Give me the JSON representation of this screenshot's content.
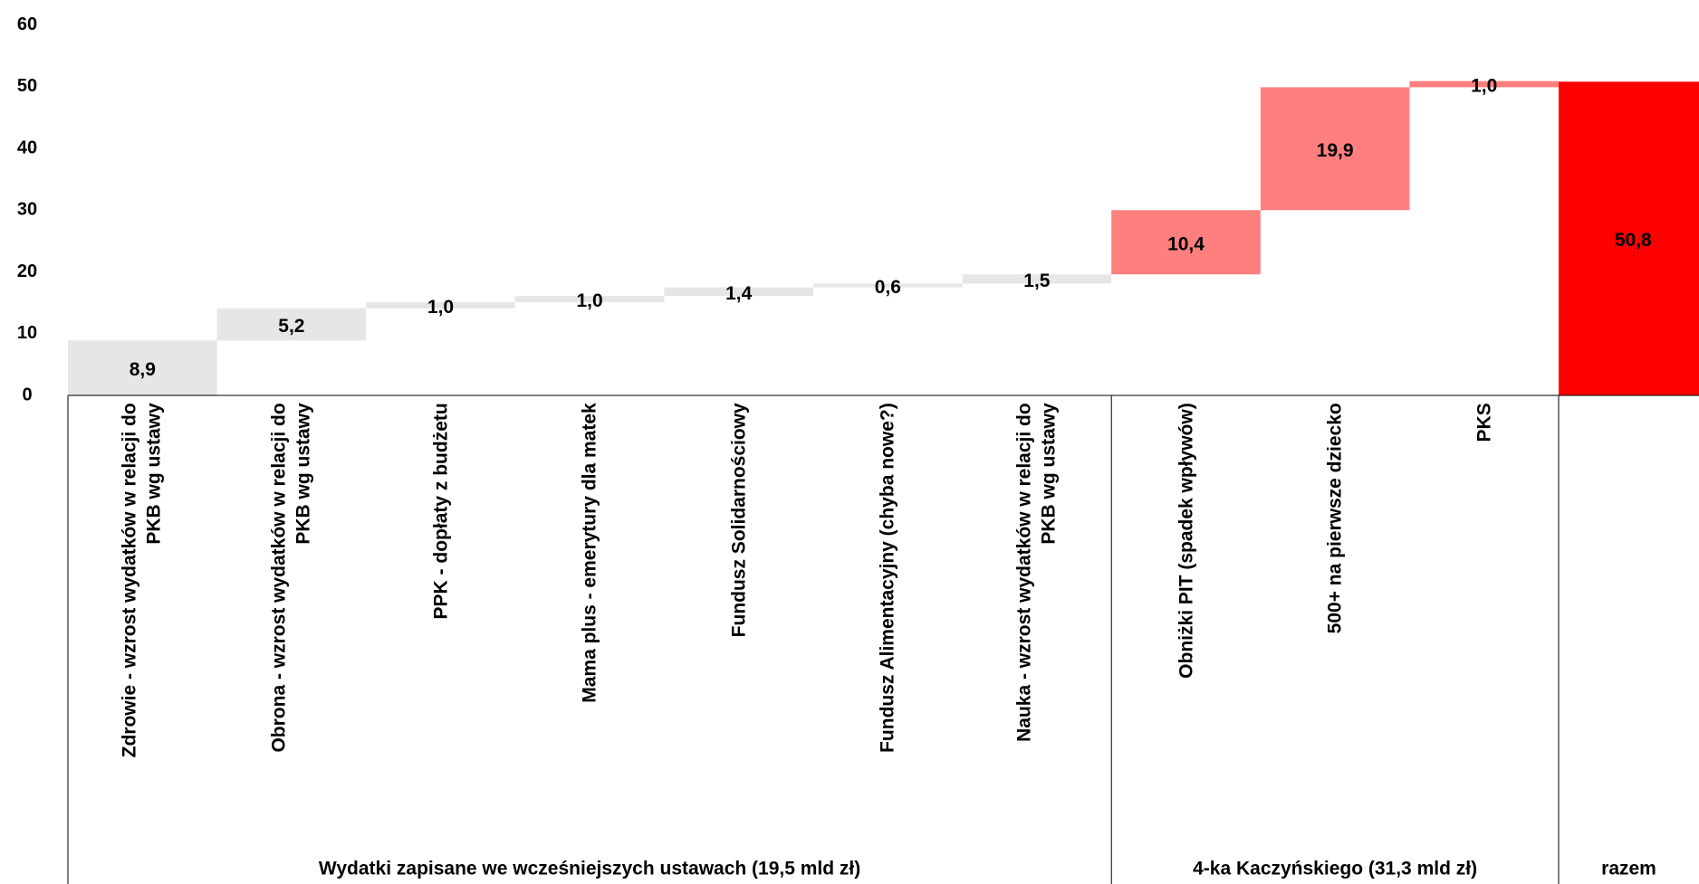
{
  "chart_data": {
    "type": "waterfall",
    "categories": [
      "Zdrowie - wzrost wydatków w relacji do PKB wg ustawy",
      "Obrona - wzrost wydatków w relacji do PKB wg ustawy",
      "PPK - dopłaty z budżetu",
      "Mama plus - emerytury dla matek",
      "Fundusz Solidarnościowy",
      "Fundusz Alimentacyjny (chyba nowe?)",
      "Nauka - wzrost wydatków w relacji do PKB wg ustawy",
      "Obniżki PIT (spadek wpływów)",
      "500+ na pierwsze dziecko",
      "PKS",
      ""
    ],
    "values": [
      8.9,
      5.2,
      1.0,
      1.0,
      1.4,
      0.6,
      1.5,
      10.4,
      19.9,
      1.0,
      50.8
    ],
    "value_labels": [
      "8,9",
      "5,2",
      "1,0",
      "1,0",
      "1,4",
      "0,6",
      "1,5",
      "10,4",
      "19,9",
      "1,0",
      "50,8"
    ],
    "is_total": [
      false,
      false,
      false,
      false,
      false,
      false,
      false,
      false,
      false,
      false,
      true
    ],
    "colors": [
      "#e6e6e6",
      "#e6e6e6",
      "#e6e6e6",
      "#e6e6e6",
      "#e6e6e6",
      "#e6e6e6",
      "#e6e6e6",
      "#ff7f7f",
      "#ff7f7f",
      "#ff7f7f",
      "#ff0000"
    ],
    "groups": [
      {
        "label": "Wydatki zapisane we wcześniejszych ustawach (19,5 mld zł)",
        "span": 7
      },
      {
        "label": "4-ka Kaczyńskiego (31,3 mld zł)",
        "span": 3
      },
      {
        "label": "razem",
        "span": 1
      }
    ],
    "ylim": [
      0,
      60
    ],
    "yticks": [
      0,
      10,
      20,
      30,
      40,
      50,
      60
    ]
  }
}
